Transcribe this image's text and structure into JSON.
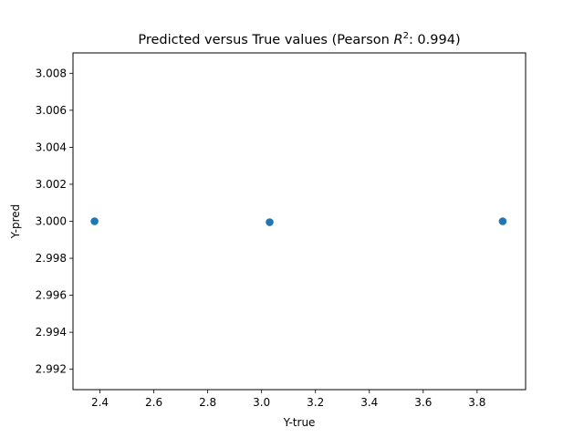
{
  "chart_data": {
    "type": "scatter",
    "title_prefix": "Predicted versus True values (Pearson ",
    "title_var": "R",
    "title_sup": "2",
    "title_suffix": ": 0.994)",
    "xlabel": "Y-true",
    "ylabel": "Y-pred",
    "xlim": [
      2.3,
      3.98
    ],
    "ylim": [
      2.9909,
      3.0091
    ],
    "xticks": [
      "2.4",
      "2.6",
      "2.8",
      "3.0",
      "3.2",
      "3.4",
      "3.6",
      "3.8"
    ],
    "yticks": [
      "2.992",
      "2.994",
      "2.996",
      "2.998",
      "3.000",
      "3.002",
      "3.004",
      "3.006",
      "3.008"
    ],
    "points": [
      {
        "x": 2.38,
        "y": 3.0
      },
      {
        "x": 3.03,
        "y": 2.99995
      },
      {
        "x": 3.895,
        "y": 3.0
      }
    ],
    "marker_color": "#1f77b4",
    "grid": false
  }
}
